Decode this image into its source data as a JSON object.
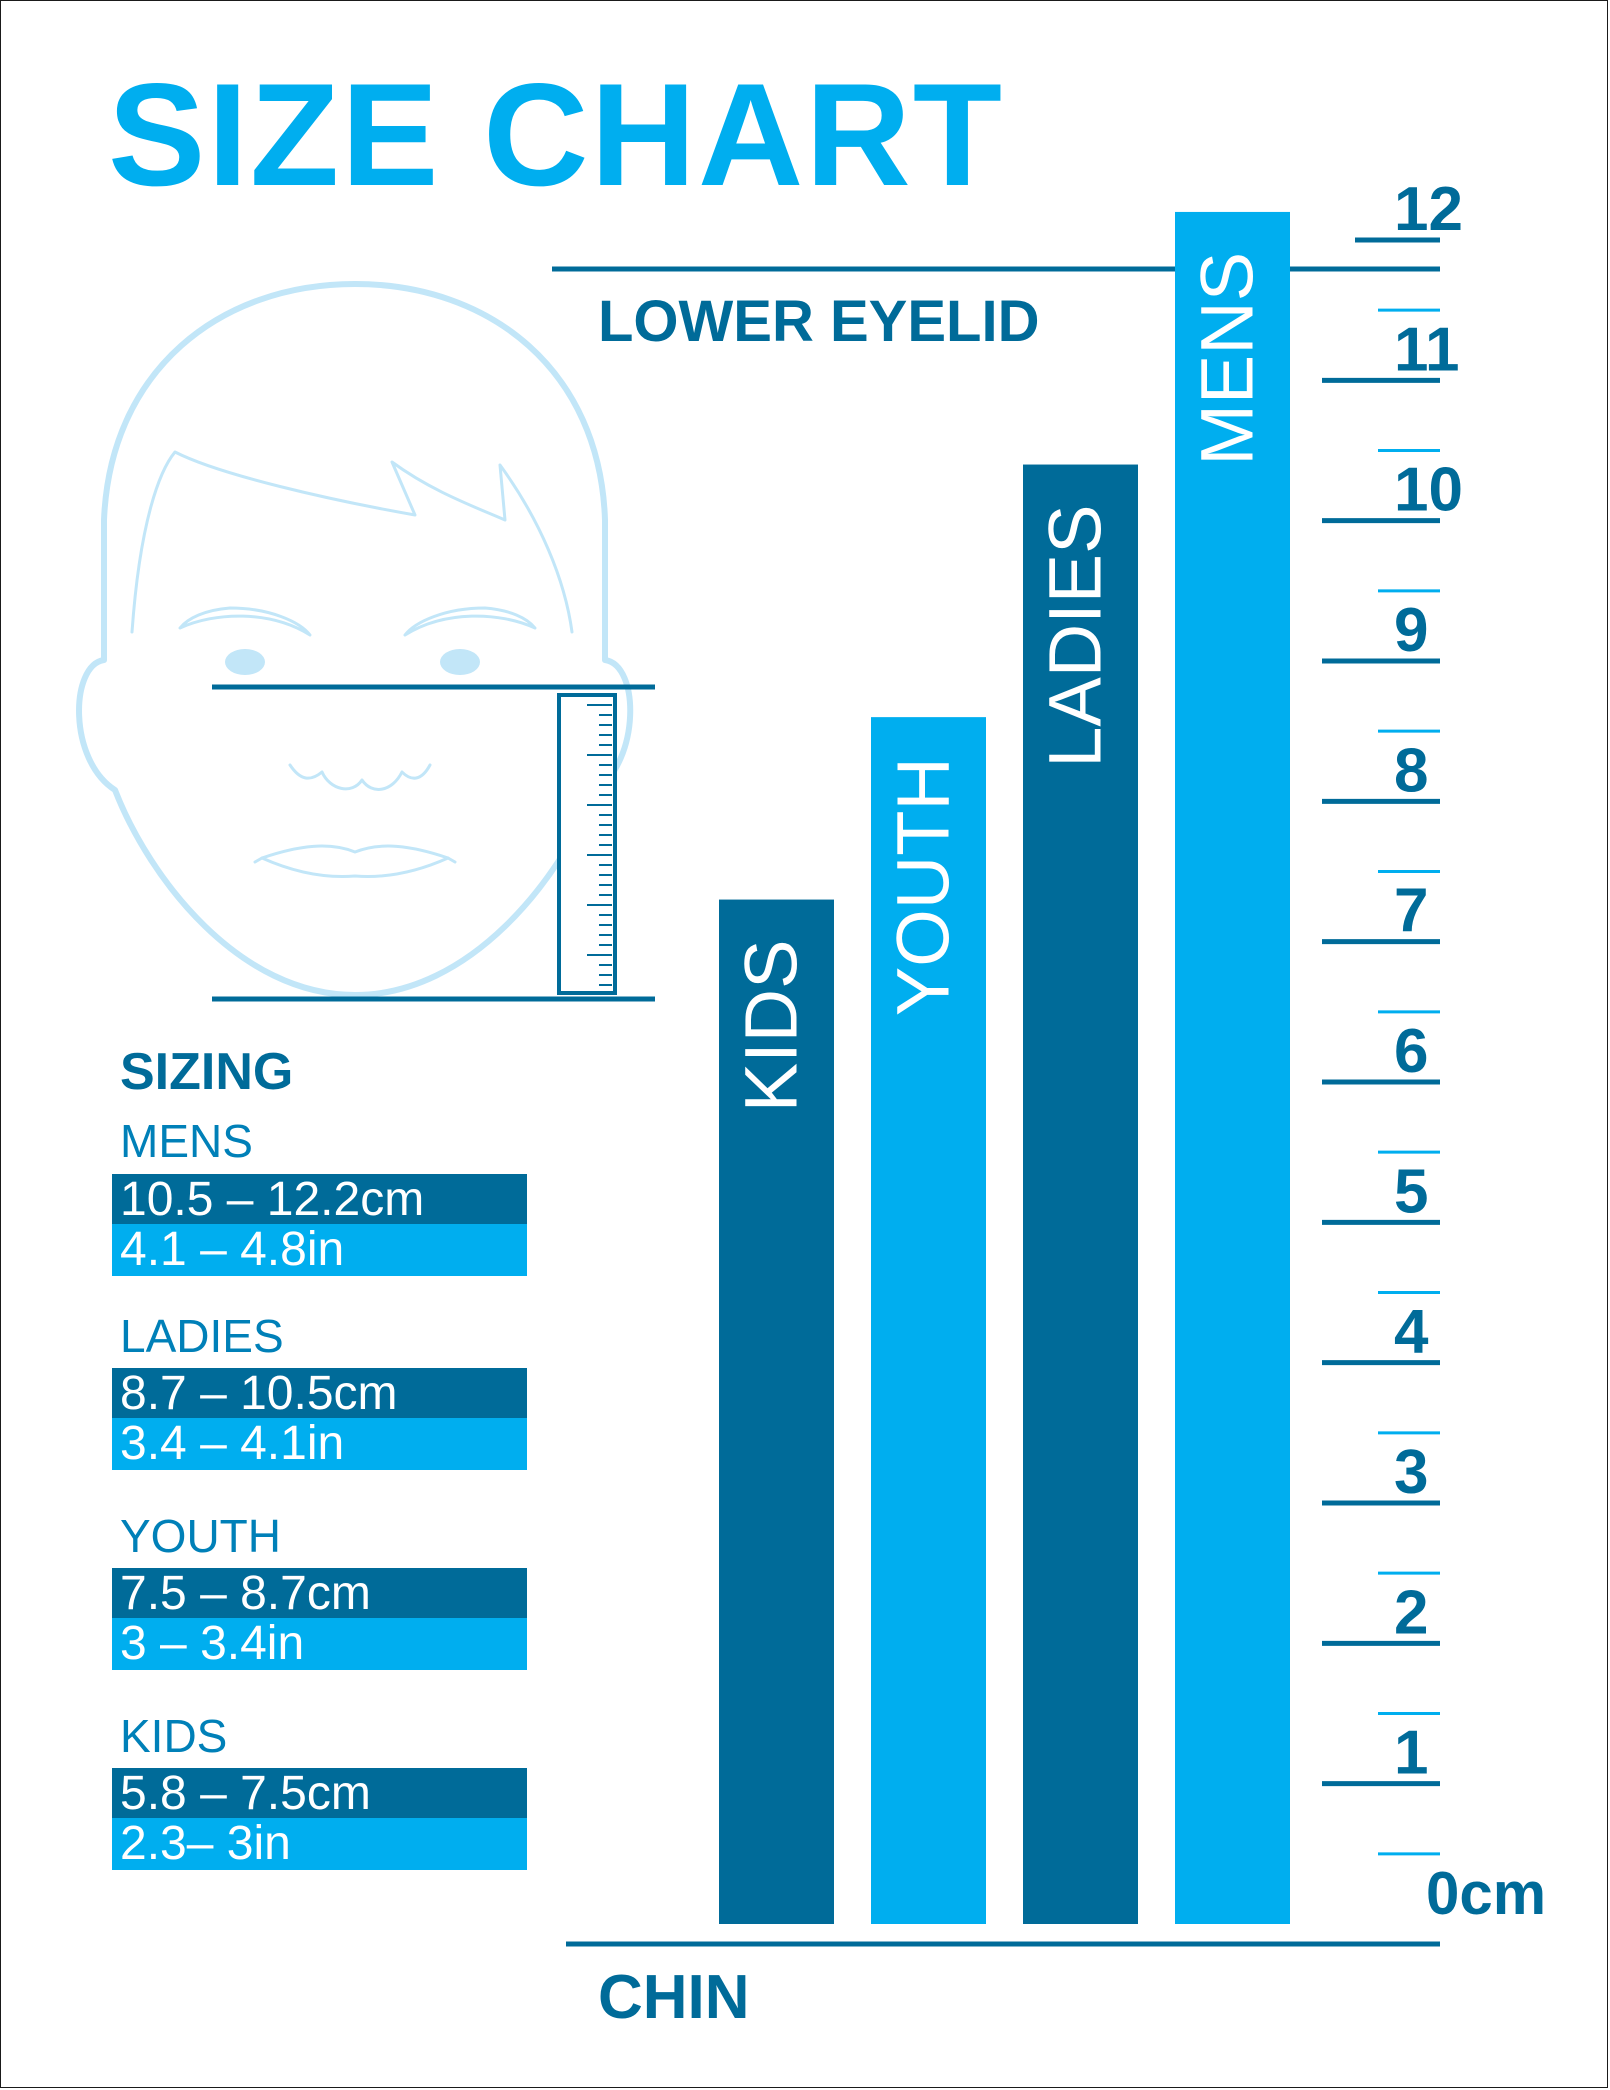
{
  "title": "SIZE CHART",
  "labels": {
    "lower_eyelid": "LOWER EYELID",
    "chin": "CHIN"
  },
  "colors": {
    "dark_blue": "#006b99",
    "bright_blue": "#00aeef",
    "face_line": "#c2e6f8",
    "white": "#ffffff"
  },
  "sizing": {
    "title": "SIZING",
    "groups": [
      {
        "name": "MENS",
        "cm": "10.5 – 12.2cm",
        "in": "4.1 – 4.8in"
      },
      {
        "name": "LADIES",
        "cm": "8.7 – 10.5cm",
        "in": "3.4 – 4.1in"
      },
      {
        "name": "YOUTH",
        "cm": "7.5 – 8.7cm",
        "in": "3 – 3.4in"
      },
      {
        "name": "KIDS",
        "cm": "5.8 – 7.5cm",
        "in": "2.3– 3in"
      }
    ]
  },
  "chart_data": {
    "type": "bar",
    "categories": [
      "KIDS",
      "YOUTH",
      "LADIES",
      "MENS"
    ],
    "values": [
      7.3,
      8.6,
      10.4,
      12.2
    ],
    "bar_colors": [
      "#006b99",
      "#00aeef",
      "#006b99",
      "#00aeef"
    ],
    "ylim": [
      0,
      12
    ],
    "yticks": [
      "0cm",
      "1",
      "2",
      "3",
      "4",
      "5",
      "6",
      "7",
      "8",
      "9",
      "10",
      "11",
      "12"
    ],
    "ylabel": "",
    "xlabel": "",
    "orientation": "vertical",
    "bar_labels_rotated": true
  }
}
